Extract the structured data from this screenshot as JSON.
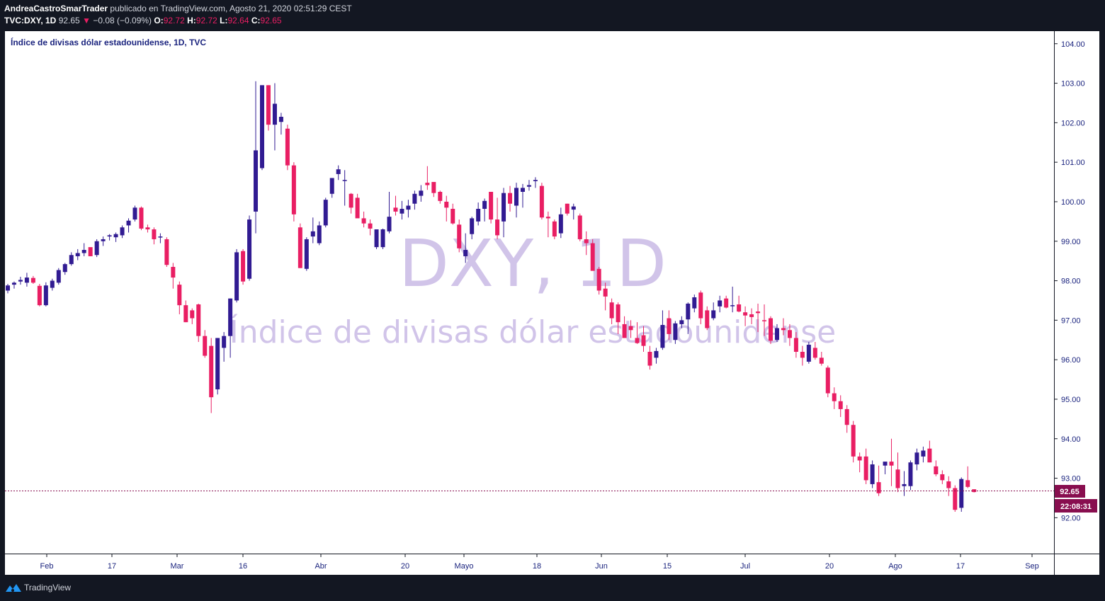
{
  "header": {
    "author": "AndreaCastroSmarTrader",
    "published": " publicado en TradingView.com, Agosto 21, 2020 02:51:29 CEST",
    "symbol": "TVC:DXY, 1D",
    "last": "92.65",
    "arrow": "▼",
    "change": "−0.08 (−0.09%)",
    "o_label": "O:",
    "o_value": "92.72",
    "h_label": "H:",
    "h_value": "92.72",
    "l_label": "L:",
    "l_value": "92.64",
    "c_label": "C:",
    "c_value": "92.65"
  },
  "legend": {
    "title": "Índice de divisas dólar estadounidense, 1D, TVC"
  },
  "watermark": {
    "symbol": "DXY, 1D",
    "description": "Índice de divisas dólar estadounidense"
  },
  "price_scale": {
    "ticks": [
      "104.00",
      "103.00",
      "102.00",
      "101.00",
      "100.00",
      "99.00",
      "98.00",
      "97.00",
      "96.00",
      "95.00",
      "94.00",
      "93.00",
      "92.00"
    ]
  },
  "last_price_label": "92.65",
  "countdown_label": "22:08:31",
  "time_scale": {
    "labels": [
      "Feb",
      "17",
      "Mar",
      "16",
      "Abr",
      "20",
      "Mayo",
      "18",
      "Jun",
      "15",
      "Jul",
      "20",
      "Ago",
      "17",
      "Sep"
    ]
  },
  "footer": {
    "brand": "TradingView"
  },
  "colors": {
    "up": "#311b92",
    "down": "#e91e63",
    "background": "#ffffff",
    "frame": "#131722",
    "watermark": "#d1c4e9",
    "price_line": "#880e4f",
    "text": "#1a237e"
  },
  "chart_data": {
    "type": "candlestick",
    "title": "Índice de divisas dólar estadounidense, 1D, TVC",
    "ylim": [
      91.1,
      104.5
    ],
    "x_ticks": [
      "Feb",
      "17",
      "Mar",
      "16",
      "Abr",
      "20",
      "Mayo",
      "18",
      "Jun",
      "15",
      "Jul",
      "20",
      "Ago",
      "17",
      "Sep"
    ],
    "last_close": 92.65,
    "candles": [
      [
        97.75,
        97.92,
        97.68,
        97.88
      ],
      [
        97.9,
        97.98,
        97.8,
        97.95
      ],
      [
        97.98,
        98.1,
        97.9,
        98.02
      ],
      [
        97.95,
        98.2,
        97.85,
        98.08
      ],
      [
        98.07,
        98.12,
        97.92,
        97.95
      ],
      [
        97.87,
        97.92,
        97.35,
        97.38
      ],
      [
        97.38,
        97.96,
        97.35,
        97.88
      ],
      [
        97.82,
        98.05,
        97.75,
        98.0
      ],
      [
        97.95,
        98.32,
        97.9,
        98.27
      ],
      [
        98.22,
        98.45,
        98.15,
        98.42
      ],
      [
        98.42,
        98.72,
        98.38,
        98.65
      ],
      [
        98.62,
        98.8,
        98.52,
        98.7
      ],
      [
        98.7,
        98.95,
        98.62,
        98.78
      ],
      [
        98.85,
        98.8,
        98.62,
        98.62
      ],
      [
        98.65,
        99.05,
        98.6,
        99.0
      ],
      [
        99.0,
        99.12,
        98.88,
        99.05
      ],
      [
        99.12,
        99.18,
        99.02,
        99.15
      ],
      [
        99.1,
        99.22,
        98.98,
        99.18
      ],
      [
        99.15,
        99.4,
        99.08,
        99.35
      ],
      [
        99.4,
        99.58,
        99.22,
        99.52
      ],
      [
        99.55,
        99.9,
        99.5,
        99.85
      ],
      [
        99.85,
        99.88,
        99.28,
        99.32
      ],
      [
        99.35,
        99.42,
        99.22,
        99.3
      ],
      [
        99.3,
        99.35,
        98.92,
        99.05
      ],
      [
        99.1,
        99.2,
        98.95,
        99.12
      ],
      [
        99.05,
        99.1,
        98.35,
        98.4
      ],
      [
        98.35,
        98.45,
        97.8,
        98.08
      ],
      [
        97.9,
        97.98,
        97.15,
        97.38
      ],
      [
        97.38,
        97.5,
        96.95,
        96.95
      ],
      [
        97.25,
        97.3,
        96.9,
        97.05
      ],
      [
        97.4,
        97.42,
        96.45,
        96.6
      ],
      [
        96.6,
        96.75,
        96.05,
        96.1
      ],
      [
        96.35,
        96.55,
        94.65,
        95.05
      ],
      [
        95.25,
        96.55,
        95.12,
        96.55
      ],
      [
        96.3,
        96.7,
        95.95,
        96.6
      ],
      [
        96.6,
        97.55,
        96.05,
        97.55
      ],
      [
        97.5,
        98.8,
        97.45,
        98.72
      ],
      [
        98.75,
        98.8,
        97.9,
        97.98
      ],
      [
        98.05,
        99.65,
        98.0,
        99.55
      ],
      [
        99.75,
        103.05,
        99.2,
        101.3
      ],
      [
        100.85,
        102.95,
        100.8,
        102.95
      ],
      [
        102.95,
        102.95,
        101.8,
        101.95
      ],
      [
        101.95,
        103.0,
        101.3,
        102.48
      ],
      [
        102.02,
        102.25,
        101.7,
        102.15
      ],
      [
        101.85,
        101.95,
        100.8,
        100.92
      ],
      [
        100.92,
        101.0,
        99.5,
        99.68
      ],
      [
        99.35,
        99.45,
        98.32,
        98.32
      ],
      [
        98.3,
        99.1,
        98.25,
        99.05
      ],
      [
        99.12,
        99.6,
        98.95,
        99.25
      ],
      [
        98.95,
        99.5,
        98.9,
        99.4
      ],
      [
        99.4,
        100.1,
        99.35,
        100.05
      ],
      [
        100.2,
        100.6,
        100.1,
        100.6
      ],
      [
        100.7,
        100.92,
        100.55,
        100.82
      ],
      [
        100.55,
        100.8,
        99.9,
        100.55
      ],
      [
        100.2,
        100.22,
        99.7,
        99.85
      ],
      [
        100.1,
        100.2,
        99.6,
        99.58
      ],
      [
        99.58,
        99.75,
        99.35,
        99.45
      ],
      [
        99.45,
        99.55,
        99.15,
        99.32
      ],
      [
        98.85,
        99.3,
        98.8,
        99.3
      ],
      [
        98.85,
        99.32,
        98.8,
        99.3
      ],
      [
        99.25,
        100.25,
        99.2,
        99.62
      ],
      [
        99.85,
        100.15,
        99.65,
        99.75
      ],
      [
        99.7,
        100.02,
        99.55,
        99.82
      ],
      [
        99.8,
        100.05,
        99.6,
        99.9
      ],
      [
        99.95,
        100.28,
        99.8,
        100.2
      ],
      [
        100.15,
        100.42,
        100.0,
        100.28
      ],
      [
        100.48,
        100.9,
        100.3,
        100.42
      ],
      [
        100.5,
        100.48,
        100.12,
        100.22
      ],
      [
        100.25,
        100.28,
        99.95,
        100.02
      ],
      [
        100.0,
        100.15,
        99.5,
        99.85
      ],
      [
        99.82,
        99.95,
        99.42,
        99.45
      ],
      [
        99.42,
        99.55,
        98.72,
        98.82
      ],
      [
        98.62,
        99.2,
        98.45,
        98.78
      ],
      [
        99.18,
        99.62,
        99.05,
        99.58
      ],
      [
        99.5,
        99.98,
        99.4,
        99.82
      ],
      [
        99.82,
        100.08,
        99.5,
        100.02
      ],
      [
        100.25,
        100.2,
        99.45,
        99.55
      ],
      [
        99.55,
        100.1,
        99.05,
        99.15
      ],
      [
        99.5,
        100.35,
        99.1,
        100.22
      ],
      [
        100.22,
        100.4,
        99.75,
        99.95
      ],
      [
        99.9,
        100.48,
        99.6,
        100.35
      ],
      [
        100.25,
        100.45,
        99.85,
        100.35
      ],
      [
        100.38,
        100.55,
        100.28,
        100.42
      ],
      [
        100.52,
        100.62,
        100.35,
        100.55
      ],
      [
        100.4,
        100.48,
        99.55,
        99.6
      ],
      [
        99.62,
        99.75,
        99.1,
        99.58
      ],
      [
        99.5,
        99.55,
        99.05,
        99.12
      ],
      [
        99.2,
        99.85,
        99.08,
        99.68
      ],
      [
        99.95,
        99.95,
        99.65,
        99.7
      ],
      [
        99.8,
        99.95,
        99.55,
        99.88
      ],
      [
        99.65,
        99.7,
        99.0,
        99.05
      ],
      [
        99.05,
        99.25,
        98.65,
        98.95
      ],
      [
        98.95,
        99.05,
        98.28,
        98.25
      ],
      [
        98.3,
        98.35,
        97.65,
        97.75
      ],
      [
        97.8,
        97.95,
        97.25,
        97.6
      ],
      [
        97.45,
        97.55,
        96.9,
        97.05
      ],
      [
        97.4,
        97.45,
        96.65,
        96.95
      ],
      [
        96.9,
        97.1,
        96.55,
        96.55
      ],
      [
        96.85,
        97.0,
        96.55,
        96.75
      ],
      [
        96.55,
        96.95,
        96.4,
        96.42
      ],
      [
        96.62,
        96.85,
        96.2,
        96.35
      ],
      [
        96.2,
        96.35,
        95.75,
        95.85
      ],
      [
        96.05,
        96.3,
        95.9,
        96.22
      ],
      [
        96.3,
        97.25,
        96.25,
        96.88
      ],
      [
        97.05,
        97.25,
        96.5,
        96.65
      ],
      [
        96.5,
        96.98,
        96.4,
        96.92
      ],
      [
        96.9,
        97.1,
        96.8,
        97.0
      ],
      [
        97.02,
        97.45,
        96.65,
        97.42
      ],
      [
        97.3,
        97.65,
        97.2,
        97.58
      ],
      [
        97.7,
        97.75,
        96.9,
        97.05
      ],
      [
        97.25,
        97.35,
        96.75,
        96.8
      ],
      [
        97.05,
        97.45,
        97.0,
        97.25
      ],
      [
        97.35,
        97.62,
        97.2,
        97.5
      ],
      [
        97.55,
        97.62,
        97.3,
        97.32
      ],
      [
        97.38,
        97.85,
        97.2,
        97.38
      ],
      [
        97.4,
        97.62,
        97.2,
        97.22
      ],
      [
        97.2,
        97.35,
        96.85,
        97.12
      ],
      [
        97.15,
        97.3,
        96.9,
        97.08
      ],
      [
        97.22,
        97.42,
        96.7,
        97.18
      ],
      [
        97.0,
        97.4,
        96.6,
        96.98
      ],
      [
        97.05,
        97.1,
        96.4,
        96.48
      ],
      [
        96.5,
        96.9,
        96.45,
        96.8
      ],
      [
        96.8,
        97.05,
        96.62,
        96.75
      ],
      [
        96.75,
        96.9,
        96.35,
        96.55
      ],
      [
        96.55,
        96.7,
        96.05,
        96.2
      ],
      [
        96.2,
        96.35,
        95.85,
        96.05
      ],
      [
        95.95,
        96.45,
        95.9,
        96.38
      ],
      [
        96.3,
        96.45,
        96.0,
        96.05
      ],
      [
        96.05,
        96.2,
        95.85,
        95.9
      ],
      [
        95.8,
        95.85,
        95.05,
        95.15
      ],
      [
        95.15,
        95.3,
        94.75,
        94.95
      ],
      [
        94.95,
        95.1,
        94.55,
        94.75
      ],
      [
        94.75,
        94.85,
        94.15,
        94.35
      ],
      [
        94.35,
        94.45,
        93.4,
        93.55
      ],
      [
        93.55,
        93.65,
        93.15,
        93.45
      ],
      [
        93.55,
        93.75,
        92.85,
        92.95
      ],
      [
        92.85,
        93.45,
        92.75,
        93.35
      ],
      [
        92.9,
        93.32,
        92.55,
        92.62
      ],
      [
        93.32,
        93.4,
        93.1,
        93.42
      ],
      [
        93.42,
        94.0,
        92.8,
        93.32
      ],
      [
        93.22,
        93.65,
        92.65,
        92.75
      ],
      [
        92.8,
        93.18,
        92.55,
        92.85
      ],
      [
        92.8,
        93.45,
        92.7,
        93.4
      ],
      [
        93.35,
        93.75,
        93.2,
        93.65
      ],
      [
        93.55,
        93.8,
        93.4,
        93.7
      ],
      [
        93.75,
        93.95,
        93.4,
        93.4
      ],
      [
        93.3,
        93.45,
        93.05,
        93.1
      ],
      [
        93.1,
        93.2,
        92.85,
        92.95
      ],
      [
        92.92,
        93.05,
        92.55,
        92.75
      ],
      [
        92.75,
        92.82,
        92.15,
        92.2
      ],
      [
        92.25,
        93.02,
        92.15,
        92.98
      ],
      [
        92.95,
        93.3,
        92.75,
        92.78
      ],
      [
        92.72,
        92.72,
        92.64,
        92.65
      ]
    ]
  }
}
